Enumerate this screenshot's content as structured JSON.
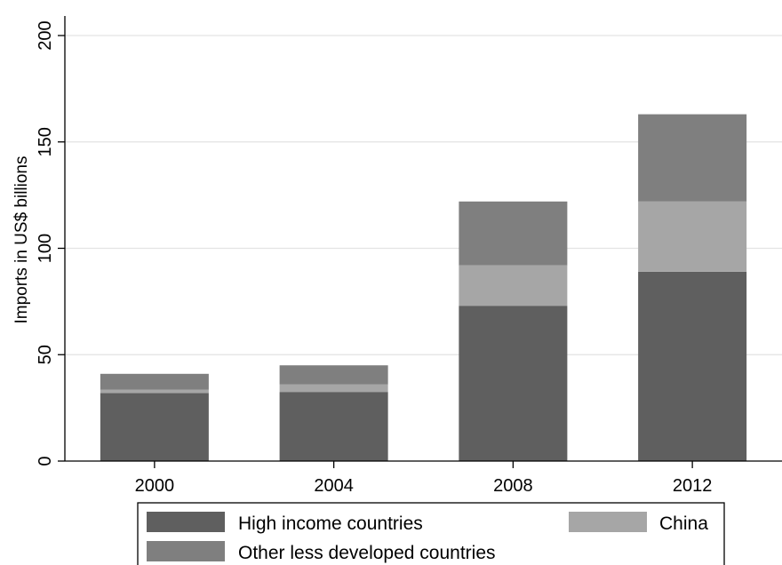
{
  "chart_data": {
    "type": "bar",
    "stacked": true,
    "categories": [
      "2000",
      "2004",
      "2008",
      "2012"
    ],
    "series": [
      {
        "name": "High income countries",
        "values": [
          32,
          32.5,
          73,
          89
        ],
        "color": "#5f5f5f"
      },
      {
        "name": "China",
        "values": [
          1.5,
          3.5,
          19,
          33
        ],
        "color": "#a6a6a6"
      },
      {
        "name": "Other less developed countries",
        "values": [
          7.5,
          9,
          30,
          41
        ],
        "color": "#7f7f7f"
      }
    ],
    "title": "",
    "xlabel": "",
    "ylabel": "Imports in US$ billions",
    "ylim": [
      0,
      200
    ],
    "yticks": [
      0,
      50,
      100,
      150,
      200
    ],
    "grid": true,
    "legend_position": "bottom"
  }
}
